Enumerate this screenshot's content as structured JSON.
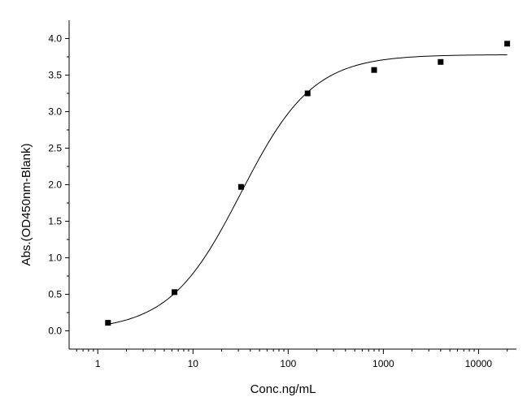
{
  "chart_data": {
    "type": "scatter",
    "title": "",
    "xlabel": "Conc.ng/mL",
    "ylabel": "Abs.(OD450nm-Blank)",
    "x_scale": "log",
    "xlim": [
      0.5,
      25000
    ],
    "ylim": [
      -0.25,
      4.25
    ],
    "grid": false,
    "legend": "none",
    "x_ticks": [
      1,
      10,
      100,
      1000,
      10000
    ],
    "x_tick_labels": [
      "1",
      "10",
      "100",
      "1000",
      "10000"
    ],
    "y_ticks": [
      0.0,
      0.5,
      1.0,
      1.5,
      2.0,
      2.5,
      3.0,
      3.5,
      4.0
    ],
    "y_tick_labels": [
      "0.0",
      "0.5",
      "1.0",
      "1.5",
      "2.0",
      "2.5",
      "3.0",
      "3.5",
      "4.0"
    ],
    "series": [
      {
        "marker": "square",
        "color": "#000000",
        "x": [
          1.28,
          6.4,
          32,
          160,
          800,
          4000,
          20000
        ],
        "y": [
          0.11,
          0.53,
          1.97,
          3.25,
          3.57,
          3.68,
          3.93
        ]
      }
    ],
    "fit_curve": {
      "model": "4PL",
      "color": "#000000",
      "bottom": 0.0,
      "top": 3.78,
      "ec50": 32,
      "hill": 1.15,
      "x_range": [
        1.28,
        20000
      ]
    }
  }
}
